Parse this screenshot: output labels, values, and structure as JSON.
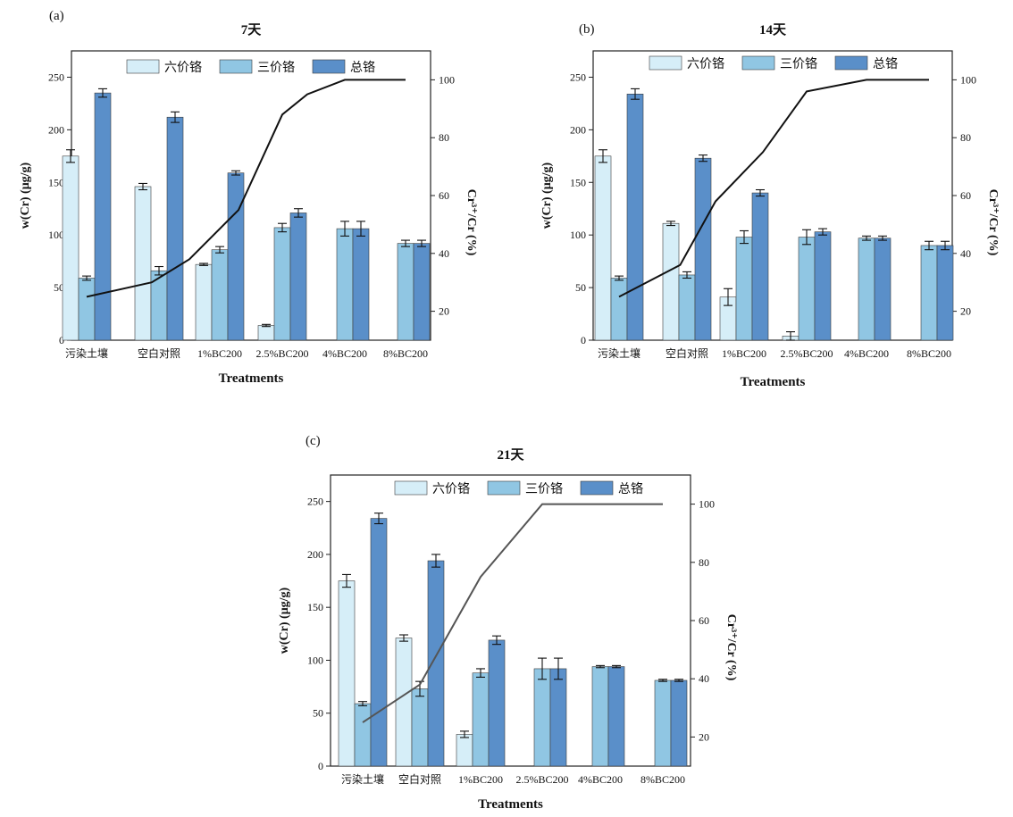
{
  "colors": {
    "hexavalent": "#d6eef8",
    "trivalent": "#90c6e3",
    "total": "#5a8fc9",
    "line": "#111111",
    "line_c": "#555555",
    "frame": "#222222"
  },
  "chart_data": [
    {
      "type": "bar",
      "panel": "(a)",
      "title": "7天",
      "xlabel": "Treatments",
      "ylabel": "w(Cr) (μg/g)",
      "ylabel2": "Cr³⁺/Cr (%)",
      "ylim": [
        0,
        275
      ],
      "y2lim": [
        10,
        110
      ],
      "yticks": [
        "0",
        "50",
        "100",
        "150",
        "200",
        "250"
      ],
      "y2ticks": [
        "20",
        "40",
        "60",
        "80",
        "100"
      ],
      "legend_position": "top",
      "categories": [
        "污染土壤",
        "空白对照",
        "1%BC200",
        "2.5%BC200",
        "4%BC200",
        "8%BC200"
      ],
      "series": [
        {
          "name": "六价铬",
          "values": [
            175,
            146,
            72,
            14,
            null,
            null
          ],
          "errors": [
            6,
            3,
            1,
            1,
            null,
            null
          ]
        },
        {
          "name": "三价铬",
          "values": [
            59,
            66,
            86,
            107,
            106,
            92
          ],
          "errors": [
            2,
            4,
            3,
            4,
            7,
            3
          ]
        },
        {
          "name": "总铬",
          "values": [
            235,
            212,
            159,
            121,
            106,
            92
          ],
          "errors": [
            4,
            5,
            2,
            4,
            7,
            3
          ]
        }
      ],
      "line": {
        "x": [
          0,
          0.9,
          1.5,
          2.3,
          3.0,
          3.4,
          4.0,
          5.0
        ],
        "values": [
          25,
          30,
          38,
          55,
          88,
          95,
          100,
          100
        ]
      }
    },
    {
      "type": "bar",
      "panel": "(b)",
      "title": "14天",
      "xlabel": "Treatments",
      "ylabel": "w(Cr) (μg/g)",
      "ylabel2": "Cr³⁺/Cr (%)",
      "ylim": [
        0,
        275
      ],
      "y2lim": [
        10,
        110
      ],
      "yticks": [
        "0",
        "50",
        "100",
        "150",
        "200",
        "250"
      ],
      "y2ticks": [
        "20",
        "40",
        "60",
        "80",
        "100"
      ],
      "legend_position": "top",
      "categories": [
        "污染土壤",
        "空白对照",
        "1%BC200",
        "2.5%BC200",
        "4%BC200",
        "8%BC200"
      ],
      "series": [
        {
          "name": "六价铬",
          "values": [
            175,
            111,
            41,
            4,
            null,
            null
          ],
          "errors": [
            6,
            2,
            8,
            4,
            null,
            null
          ]
        },
        {
          "name": "三价铬",
          "values": [
            59,
            62,
            98,
            98,
            97,
            90
          ],
          "errors": [
            2,
            3,
            6,
            7,
            2,
            4
          ]
        },
        {
          "name": "总铬",
          "values": [
            234,
            173,
            140,
            103,
            97,
            90
          ],
          "errors": [
            5,
            3,
            3,
            3,
            2,
            4
          ]
        }
      ],
      "line": {
        "x": [
          0,
          0.9,
          1.5,
          2.3,
          3.0,
          4.0,
          5.0
        ],
        "values": [
          25,
          36,
          58,
          75,
          96,
          100,
          100
        ]
      }
    },
    {
      "type": "bar",
      "panel": "(c)",
      "title": "21天",
      "xlabel": "Treatments",
      "ylabel": "w(Cr) (μg/g)",
      "ylabel2": "Cr³⁺/Cr (%)",
      "ylim": [
        0,
        275
      ],
      "y2lim": [
        10,
        110
      ],
      "yticks": [
        "0",
        "50",
        "100",
        "150",
        "200",
        "250"
      ],
      "y2ticks": [
        "20",
        "40",
        "60",
        "80",
        "100"
      ],
      "legend_position": "top",
      "categories": [
        "污染土壤",
        "空白对照",
        "1%BC200",
        "2.5%BC200",
        "4%BC200",
        "8%BC200"
      ],
      "series": [
        {
          "name": "六价铬",
          "values": [
            175,
            121,
            30,
            null,
            null,
            null
          ],
          "errors": [
            6,
            3,
            3,
            null,
            null,
            null
          ]
        },
        {
          "name": "三价铬",
          "values": [
            59,
            73,
            88,
            92,
            94,
            81
          ],
          "errors": [
            2,
            7,
            4,
            10,
            1,
            1
          ]
        },
        {
          "name": "总铬",
          "values": [
            234,
            194,
            119,
            92,
            94,
            81
          ],
          "errors": [
            5,
            6,
            4,
            10,
            1,
            1
          ]
        }
      ],
      "line": {
        "x": [
          0,
          1.0,
          2.0,
          3.0,
          5.0
        ],
        "values": [
          25,
          38,
          75,
          100,
          100
        ]
      }
    }
  ]
}
